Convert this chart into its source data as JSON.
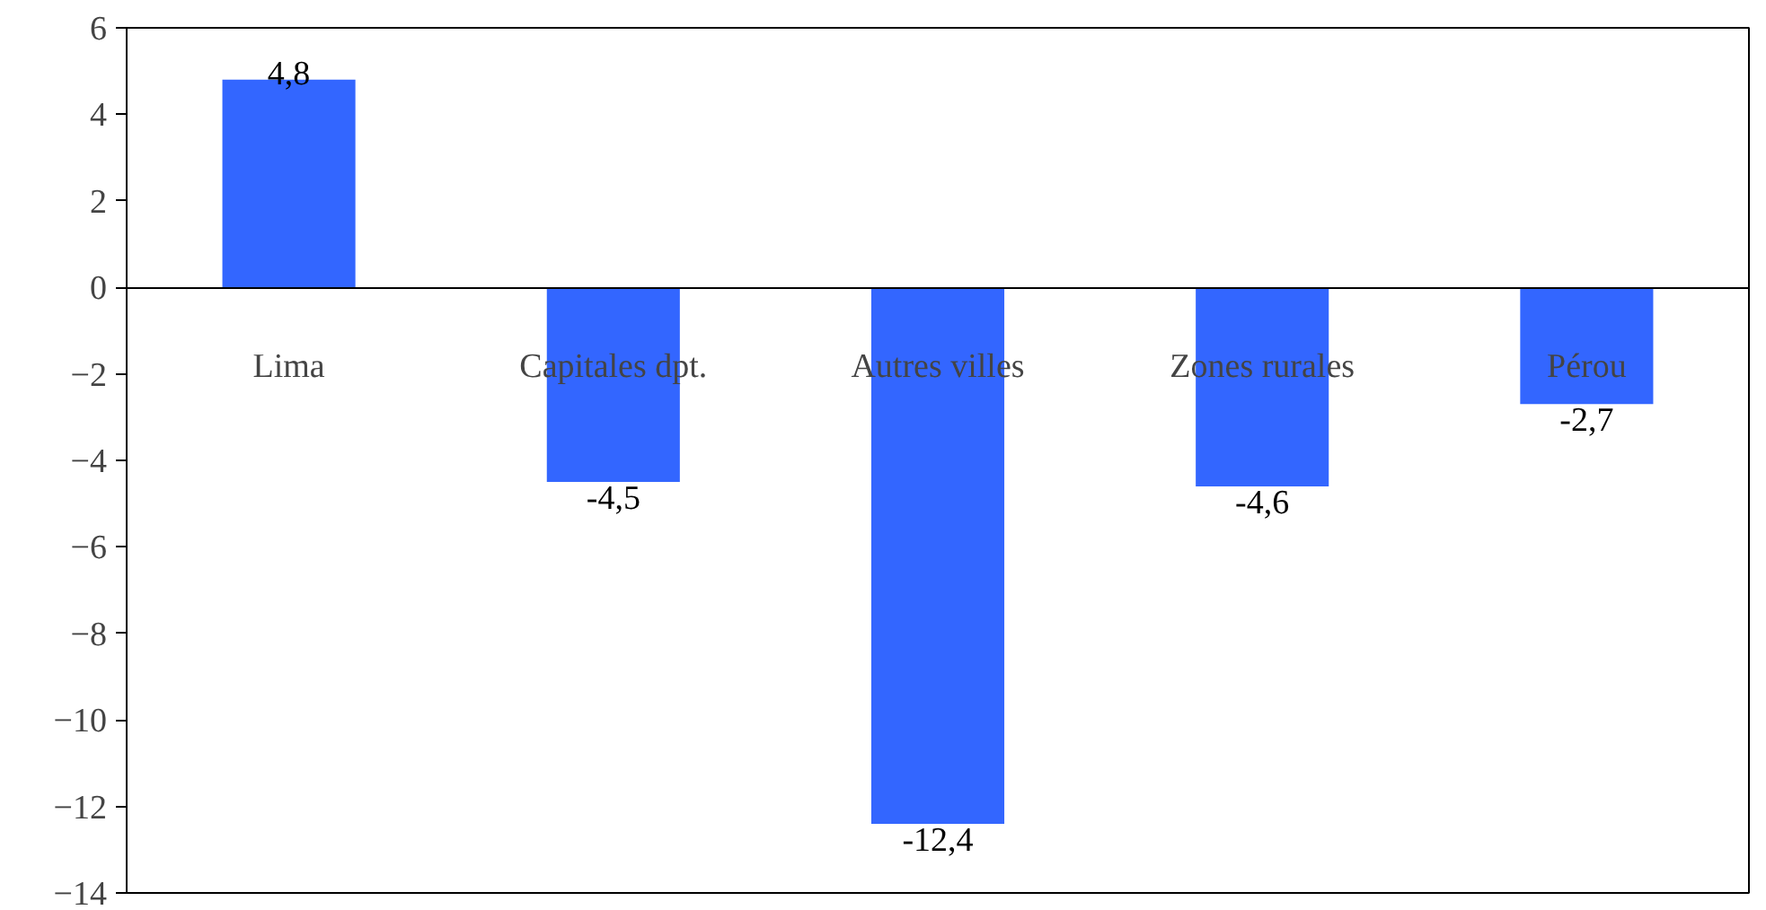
{
  "chart_data": {
    "type": "bar",
    "categories": [
      "Lima",
      "Capitales dpt.",
      "Autres villes",
      "Zones rurales",
      "Pérou"
    ],
    "values": [
      4.8,
      -4.5,
      -12.4,
      -4.6,
      -2.7
    ],
    "value_labels": [
      "4,8",
      "-4,5",
      "-12,4",
      "-4,6",
      "-2,7"
    ],
    "color": "#3366ff",
    "ylim": [
      -14,
      6
    ],
    "yticks": [
      -14,
      -12,
      -10,
      -8,
      -6,
      -4,
      -2,
      0,
      2,
      4,
      6
    ],
    "grid": false
  }
}
